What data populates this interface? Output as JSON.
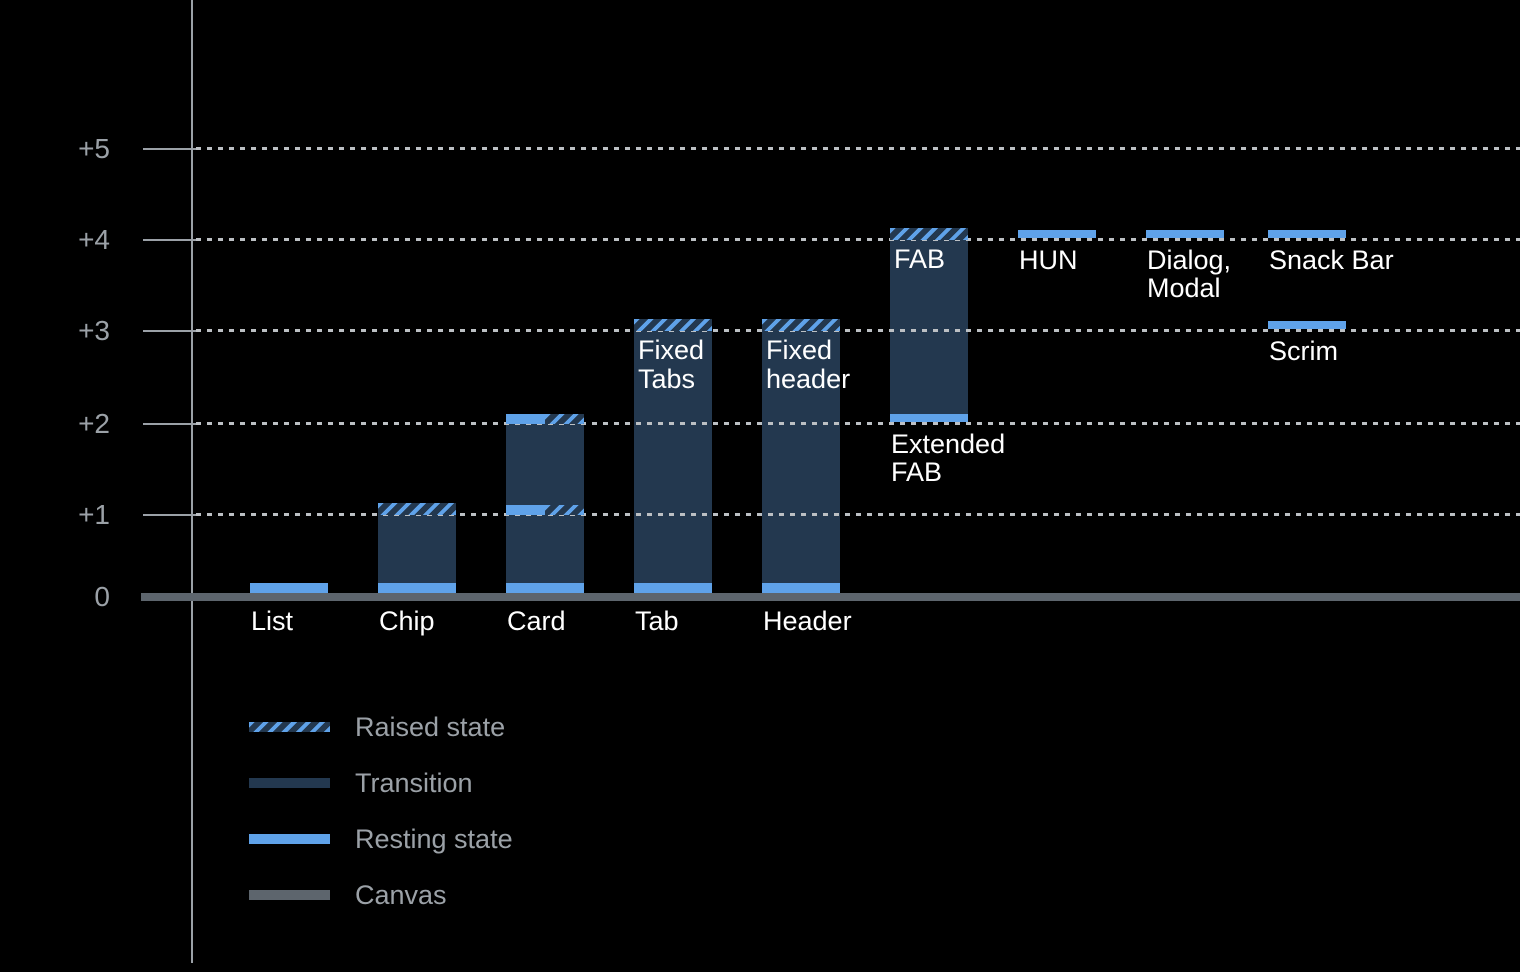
{
  "chart_data": {
    "type": "bar",
    "description": "Elevation diagram: UI components at elevation levels 0 to +5 with resting, transition and raised states above a canvas baseline",
    "ylim": [
      0,
      5.5
    ],
    "grid": "dotted horizontal gridlines at +1 through +5",
    "legend_position": "bottom-left",
    "yticks": [
      {
        "value": 5,
        "label": "+5"
      },
      {
        "value": 4,
        "label": "+4"
      },
      {
        "value": 3,
        "label": "+3"
      },
      {
        "value": 2,
        "label": "+2"
      },
      {
        "value": 1,
        "label": "+1"
      },
      {
        "value": 0,
        "label": "0"
      }
    ],
    "bars": [
      {
        "id": "list",
        "col": 0,
        "axis_label": "List",
        "segments": [
          {
            "type": "resting",
            "at": 0
          }
        ]
      },
      {
        "id": "chip",
        "col": 1,
        "axis_label": "Chip",
        "segments": [
          {
            "type": "resting",
            "at": 0
          },
          {
            "type": "transition",
            "from": 0,
            "to": 1
          },
          {
            "type": "raised",
            "at": 1
          }
        ]
      },
      {
        "id": "card",
        "col": 2,
        "axis_label": "Card",
        "segments": [
          {
            "type": "resting",
            "at": 0
          },
          {
            "type": "transition",
            "from": 0,
            "to": 2
          },
          {
            "type": "resting-raised",
            "at": 1
          },
          {
            "type": "resting-raised",
            "at": 2
          }
        ]
      },
      {
        "id": "tab",
        "col": 3,
        "axis_label": "Tab",
        "inside_label_lines": [
          "Fixed",
          "Tabs"
        ],
        "segments": [
          {
            "type": "resting",
            "at": 0
          },
          {
            "type": "transition",
            "from": 0,
            "to": 3
          },
          {
            "type": "raised",
            "at": 3
          }
        ]
      },
      {
        "id": "header",
        "col": 4,
        "axis_label": "Header",
        "inside_label_lines": [
          "Fixed",
          "header"
        ],
        "segments": [
          {
            "type": "resting",
            "at": 0
          },
          {
            "type": "transition",
            "from": 0,
            "to": 3
          },
          {
            "type": "raised",
            "at": 3
          }
        ]
      },
      {
        "id": "extended-fab",
        "col": 5,
        "inside_label_lines": [
          "FAB"
        ],
        "below_label_lines": [
          "Extended",
          "FAB"
        ],
        "below_label_at": 2,
        "segments": [
          {
            "type": "resting-float",
            "at": 2
          },
          {
            "type": "transition",
            "from": 2,
            "to": 4
          },
          {
            "type": "raised",
            "at": 4
          }
        ]
      },
      {
        "id": "hun",
        "col": 6,
        "below_label_lines": [
          "HUN"
        ],
        "below_label_at": 4,
        "segments": [
          {
            "type": "resting-float",
            "at": 4
          }
        ]
      },
      {
        "id": "dialog-modal",
        "col": 7,
        "below_label_lines": [
          "Dialog,",
          "Modal"
        ],
        "below_label_at": 4,
        "segments": [
          {
            "type": "resting-float",
            "at": 4
          }
        ]
      },
      {
        "id": "snack-bar",
        "col": 8,
        "below_label_lines": [
          "Snack Bar"
        ],
        "below_label_at": 4,
        "segments": [
          {
            "type": "resting-float",
            "at": 4
          }
        ]
      },
      {
        "id": "scrim",
        "col": 8,
        "below_label_lines": [
          "Scrim"
        ],
        "below_label_at": 3,
        "segments": [
          {
            "type": "resting-float",
            "at": 3
          }
        ]
      }
    ],
    "legend": [
      {
        "id": "raised",
        "label": "Raised state",
        "swatch": "hatched"
      },
      {
        "id": "transition",
        "label": "Transition",
        "swatch": "transition"
      },
      {
        "id": "resting",
        "label": "Resting state",
        "swatch": "resting"
      },
      {
        "id": "canvas",
        "label": "Canvas",
        "swatch": "canvas"
      }
    ],
    "colors": {
      "background": "#000000",
      "resting": "#5FA2E9",
      "transition": "#23384F",
      "canvas": "#5D656D",
      "gridline": "#BCC0C4",
      "axis": "#9BA1A7",
      "bar_label_text": "#FFFFFF",
      "muted_text": "#9BA1A7"
    }
  }
}
